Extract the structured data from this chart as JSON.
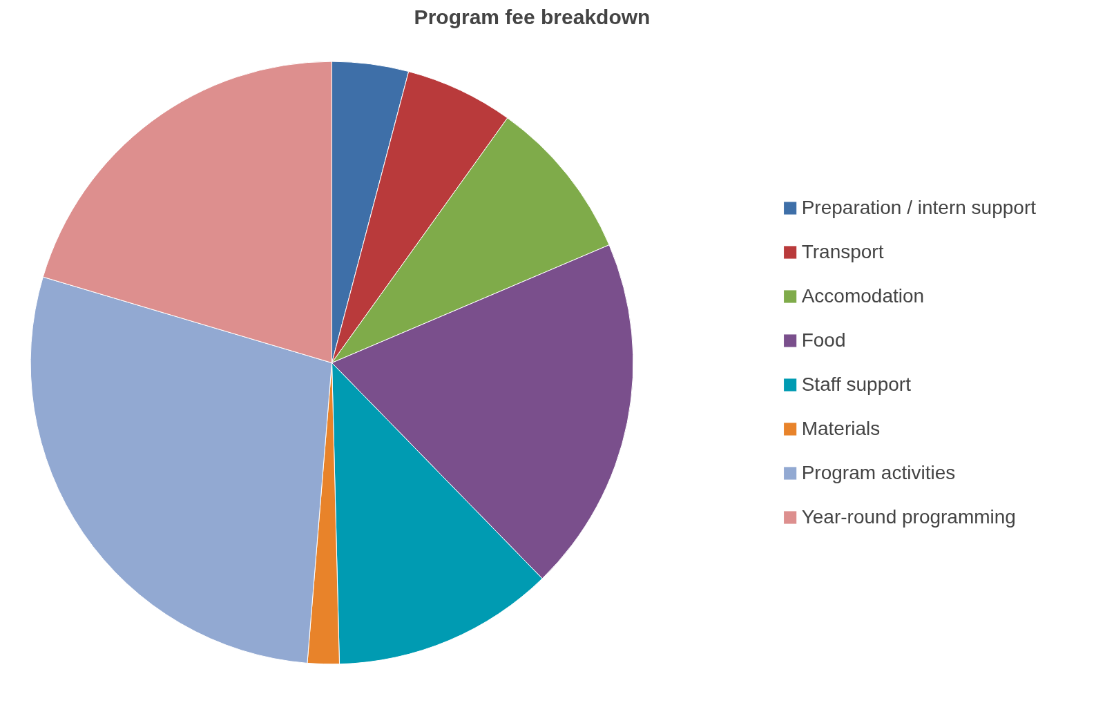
{
  "chart_data": {
    "type": "pie",
    "title": "Program fee breakdown",
    "categories": [
      "Preparation / intern support",
      "Transport",
      "Accomodation",
      "Food",
      "Staff support",
      "Materials",
      "Program activities",
      "Year-round programming"
    ],
    "values": [
      4.1,
      5.8,
      8.7,
      19.1,
      11.9,
      1.7,
      28.3,
      20.4
    ],
    "colors": [
      "#3e6fa8",
      "#b93a3b",
      "#7fab4a",
      "#7a4f8c",
      "#009bb2",
      "#e8832a",
      "#92a9d2",
      "#dd8f8e"
    ],
    "legend": "right"
  }
}
